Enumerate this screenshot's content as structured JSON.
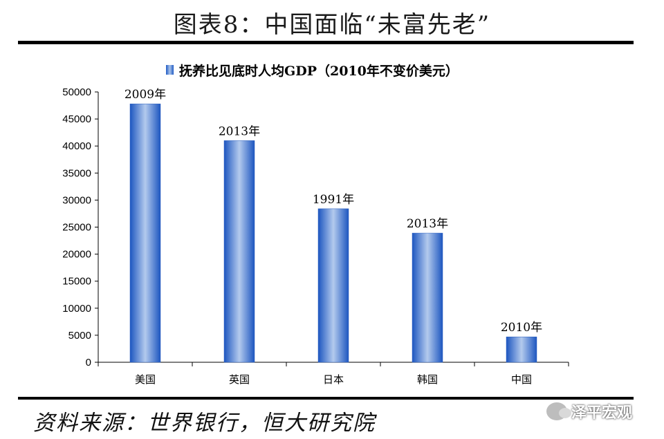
{
  "figure": {
    "title": "图表8：中国面临“未富先老”",
    "source": "资料来源：世界银行，恒大研究院",
    "watermark": "泽平宏观"
  },
  "chart_data": {
    "type": "bar",
    "legend": "抚养比见底时人均GDP（2010年不变价美元）",
    "categories": [
      "美国",
      "英国",
      "日本",
      "韩国",
      "中国"
    ],
    "values": [
      47800,
      41000,
      28400,
      23900,
      4700
    ],
    "bar_labels": [
      "2009年",
      "2013年",
      "1991年",
      "2013年",
      "2010年"
    ],
    "ylim": [
      0,
      50000
    ],
    "yticks": [
      0,
      5000,
      10000,
      15000,
      20000,
      25000,
      30000,
      35000,
      40000,
      45000,
      50000
    ],
    "grid": false,
    "bar_color": "#2563c9"
  }
}
